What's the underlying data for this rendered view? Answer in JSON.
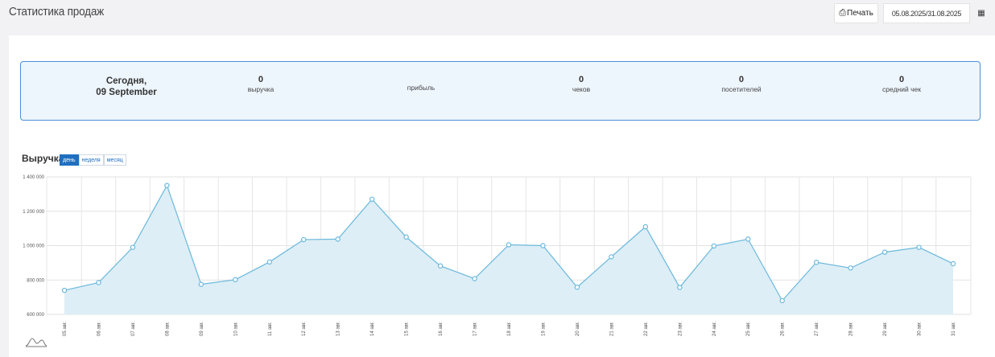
{
  "header": {
    "title": "Статистика продаж",
    "print_label": "Печать",
    "print_icon": "printer-icon",
    "date_range": "05.08.2025/31.08.2025",
    "calendar_icon": "calendar-icon"
  },
  "summary": {
    "today_line1": "Сегодня,",
    "today_line2": "09 September",
    "stats": [
      {
        "value": "0",
        "label": "выручка"
      },
      {
        "value": "",
        "label": "прибыль"
      },
      {
        "value": "0",
        "label": "чеков"
      },
      {
        "value": "0",
        "label": "посетителей"
      },
      {
        "value": "0",
        "label": "средний чек"
      }
    ]
  },
  "revenue": {
    "title": "Выручка",
    "periods": [
      "день",
      "неделя",
      "месяц"
    ],
    "active_period": "день"
  },
  "colors": {
    "accent": "#1f6fc0",
    "line": "#6bb8dc",
    "area": "#ddeef6",
    "summary_border": "#4a90d9"
  },
  "chart_data": {
    "type": "area",
    "x": [
      "05 авг.",
      "06 авг.",
      "07 авг.",
      "08 авг.",
      "09 авг.",
      "10 авг.",
      "11 авг.",
      "12 авг.",
      "13 авг.",
      "14 авг.",
      "15 авг.",
      "16 авг.",
      "17 авг.",
      "18 авг.",
      "19 авг.",
      "20 авг.",
      "21 авг.",
      "22 авг.",
      "23 авг.",
      "24 авг.",
      "25 авг.",
      "26 авг.",
      "27 авг.",
      "28 авг.",
      "29 авг.",
      "30 авг.",
      "31 авг."
    ],
    "values": [
      740000,
      785000,
      990000,
      1350000,
      775000,
      802000,
      905000,
      1035000,
      1038000,
      1270000,
      1050000,
      882000,
      808000,
      1005000,
      1000000,
      758000,
      935000,
      1110000,
      757000,
      998000,
      1038000,
      680000,
      903000,
      870000,
      962000,
      990000,
      895000
    ],
    "ylim": [
      600000,
      1400000
    ],
    "yticks": [
      "1 400 000",
      "1 200 000",
      "1 000 000",
      "800 000",
      "600 000"
    ],
    "grid": true
  }
}
